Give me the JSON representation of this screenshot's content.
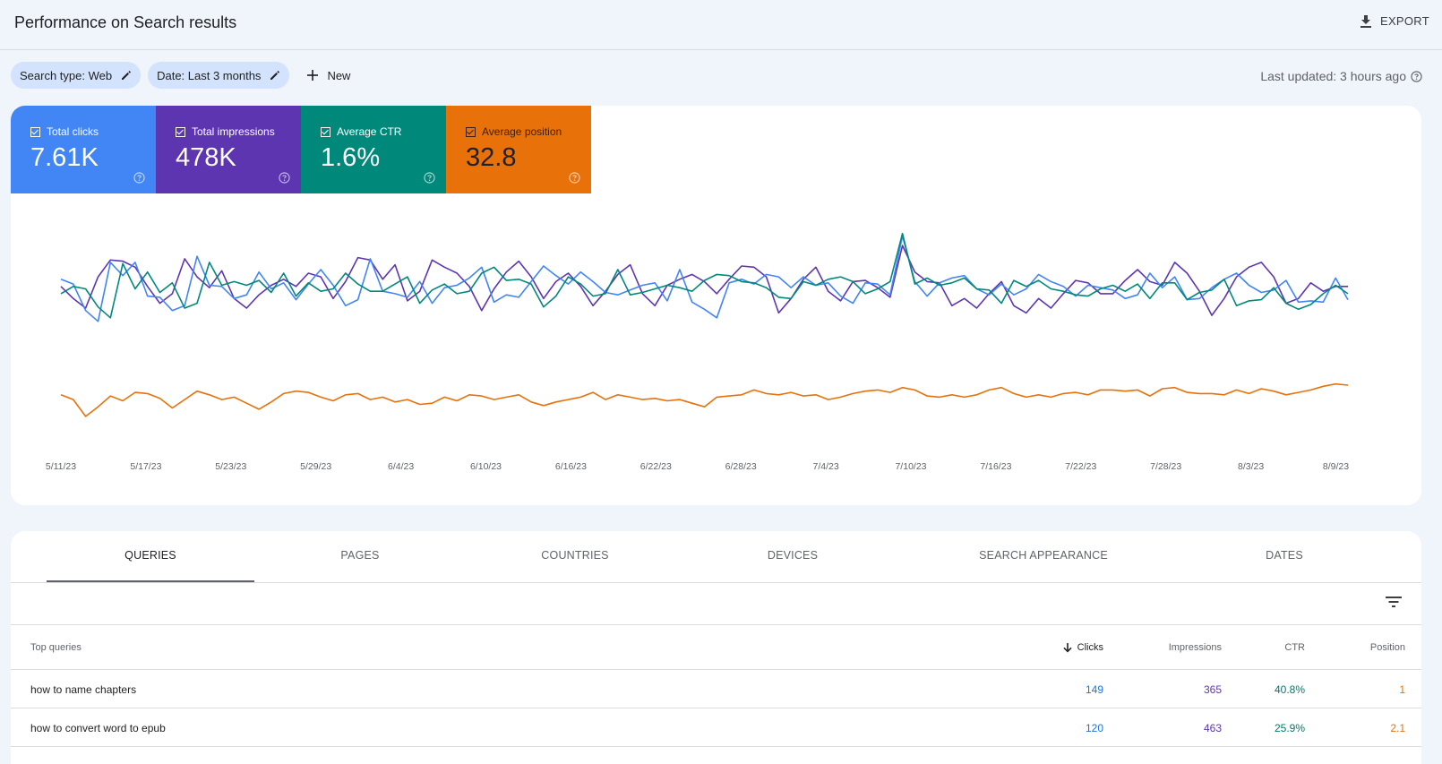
{
  "header": {
    "title": "Performance on Search results",
    "export_label": "EXPORT"
  },
  "filters": {
    "search_type": "Search type: Web",
    "date": "Date: Last 3 months",
    "new_label": "New",
    "last_updated": "Last updated: 3 hours ago"
  },
  "metrics": [
    {
      "label": "Total clicks",
      "value": "7.61K",
      "color": "#4285f4"
    },
    {
      "label": "Total impressions",
      "value": "478K",
      "color": "#5e35b1"
    },
    {
      "label": "Average CTR",
      "value": "1.6%",
      "color": "#00897b"
    },
    {
      "label": "Average position",
      "value": "32.8",
      "color": "#e8710a"
    }
  ],
  "chart_data": {
    "type": "line",
    "x_tick_labels": [
      "5/11/23",
      "5/17/23",
      "5/23/23",
      "5/29/23",
      "6/4/23",
      "6/10/23",
      "6/16/23",
      "6/22/23",
      "6/28/23",
      "7/4/23",
      "7/10/23",
      "7/16/23",
      "7/22/23",
      "7/28/23",
      "8/3/23",
      "8/9/23"
    ],
    "x_start": "5/11/23",
    "x_end": "8/10/23",
    "grid": false,
    "legend": "none",
    "y_axes_visible": false,
    "series": [
      {
        "name": "Total impressions",
        "color": "#5e35b1",
        "values": [
          54,
          44,
          36,
          62,
          76,
          75,
          70,
          54,
          40,
          48,
          77,
          62,
          53,
          67,
          44,
          36,
          47,
          55,
          60,
          54,
          65,
          62,
          44,
          58,
          78,
          76,
          60,
          72,
          42,
          50,
          76,
          70,
          65,
          54,
          34,
          52,
          66,
          75,
          62,
          44,
          58,
          65,
          54,
          38,
          50,
          64,
          72,
          48,
          38,
          55,
          60,
          64,
          58,
          48,
          60,
          71,
          70,
          62,
          32,
          44,
          60,
          70,
          50,
          42,
          58,
          59,
          53,
          45,
          88,
          66,
          58,
          57,
          38,
          44,
          36,
          48,
          58,
          38,
          32,
          44,
          36,
          48,
          59,
          57,
          48,
          48,
          59,
          68,
          58,
          55,
          74,
          65,
          50,
          30,
          44,
          62,
          70,
          74,
          62,
          40,
          44,
          57,
          50,
          54,
          54
        ]
      },
      {
        "name": "Total clicks",
        "color": "#4285f4",
        "values": [
          60,
          56,
          34,
          25,
          74,
          63,
          74,
          46,
          45,
          34,
          38,
          79,
          55,
          54,
          44,
          47,
          66,
          52,
          57,
          43,
          56,
          68,
          55,
          38,
          43,
          77,
          50,
          48,
          45,
          58,
          40,
          53,
          55,
          61,
          70,
          41,
          47,
          45,
          58,
          71,
          63,
          56,
          66,
          58,
          49,
          47,
          51,
          55,
          57,
          42,
          68,
          41,
          35,
          28,
          57,
          60,
          56,
          64,
          62,
          53,
          62,
          55,
          57,
          46,
          40,
          57,
          56,
          47,
          96,
          58,
          46,
          57,
          61,
          63,
          52,
          47,
          56,
          47,
          52,
          64,
          58,
          54,
          46,
          55,
          53,
          51,
          44,
          47,
          65,
          53,
          62,
          43,
          44,
          53,
          60,
          65,
          55,
          49,
          51,
          59,
          41,
          42,
          41,
          61,
          43
        ]
      },
      {
        "name": "Average CTR",
        "color": "#00897b",
        "values": [
          48,
          54,
          52,
          37,
          28,
          73,
          52,
          66,
          49,
          57,
          36,
          40,
          74,
          55,
          58,
          55,
          59,
          49,
          65,
          46,
          57,
          50,
          52,
          65,
          56,
          50,
          50,
          56,
          62,
          40,
          51,
          56,
          48,
          50,
          65,
          70,
          59,
          60,
          56,
          37,
          46,
          62,
          56,
          46,
          48,
          68,
          47,
          49,
          52,
          55,
          53,
          50,
          59,
          64,
          63,
          58,
          57,
          53,
          45,
          44,
          58,
          55,
          60,
          62,
          58,
          48,
          52,
          58,
          98,
          56,
          61,
          55,
          57,
          61,
          52,
          51,
          40,
          59,
          54,
          59,
          52,
          50,
          47,
          46,
          52,
          55,
          50,
          56,
          44,
          57,
          57,
          43,
          49,
          51,
          60,
          38,
          42,
          43,
          53,
          40,
          35,
          39,
          48,
          55,
          48
        ]
      },
      {
        "name": "Average position",
        "color": "#e8710a",
        "values": [
          -36,
          -40,
          -54,
          -46,
          -37,
          -41,
          -34,
          -35,
          -39,
          -47,
          -40,
          -33,
          -36,
          -40,
          -38,
          -43,
          -48,
          -42,
          -35,
          -33,
          -34,
          -38,
          -41,
          -36,
          -35,
          -40,
          -38,
          -42,
          -40,
          -44,
          -43,
          -38,
          -41,
          -36,
          -37,
          -40,
          -38,
          -36,
          -42,
          -45,
          -42,
          -40,
          -38,
          -34,
          -40,
          -36,
          -38,
          -40,
          -39,
          -41,
          -40,
          -43,
          -46,
          -38,
          -37,
          -36,
          -32,
          -35,
          -36,
          -34,
          -37,
          -36,
          -40,
          -38,
          -35,
          -33,
          -32,
          -34,
          -30,
          -32,
          -37,
          -38,
          -36,
          -38,
          -36,
          -32,
          -30,
          -35,
          -38,
          -36,
          -38,
          -35,
          -34,
          -36,
          -32,
          -32,
          -33,
          -32,
          -37,
          -31,
          -30,
          -34,
          -35,
          -35,
          -36,
          -32,
          -35,
          -31,
          -33,
          -36,
          -34,
          -32,
          -29,
          -27,
          -28
        ]
      }
    ]
  },
  "tabs": [
    "QUERIES",
    "PAGES",
    "COUNTRIES",
    "DEVICES",
    "SEARCH APPEARANCE",
    "DATES"
  ],
  "table": {
    "headers": {
      "query": "Top queries",
      "clicks": "Clicks",
      "impressions": "Impressions",
      "ctr": "CTR",
      "position": "Position"
    },
    "rows": [
      {
        "query": "how to name chapters",
        "clicks": "149",
        "impressions": "365",
        "ctr": "40.8%",
        "position": "1"
      },
      {
        "query": "how to convert word to epub",
        "clicks": "120",
        "impressions": "463",
        "ctr": "25.9%",
        "position": "2.1"
      }
    ],
    "colors": {
      "clicks": "#1a73e8",
      "impressions": "#5e35b1",
      "ctr": "#00796b",
      "position": "#e8710a"
    }
  }
}
